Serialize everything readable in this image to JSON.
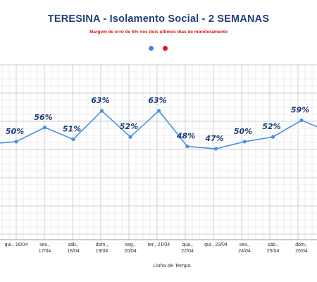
{
  "chart_data": {
    "type": "line",
    "title": "TERESINA - Isolamento Social - 2 SEMANAS",
    "subtitle": "Margem de erro de 5% nos dois últimos dias de monitoramento",
    "xlabel": "Linha de Tempo",
    "ylabel": "",
    "grid": true,
    "legend": {
      "position": "top-center",
      "colors": [
        "#4285f4",
        "#e8131c"
      ]
    },
    "line_color": "#4a8fe7",
    "label_color": "#1f3f7a",
    "ylim": [
      0,
      100
    ],
    "x_tick_labels": [
      [
        "qui., 16/04"
      ],
      [
        "sex.,",
        "17/04"
      ],
      [
        "sáb.,",
        "18/04"
      ],
      [
        "dom.,",
        "19/04"
      ],
      [
        "seg.,",
        "20/04"
      ],
      [
        "ter., 21/04"
      ],
      [
        "qua.,",
        "22/04"
      ],
      [
        "qui., 23/04"
      ],
      [
        "sex.,",
        "24/04"
      ],
      [
        "sáb.,",
        "25/04"
      ],
      [
        "dom.,",
        "26/04"
      ]
    ],
    "x_tick_index": [
      1,
      2,
      3,
      4,
      5,
      6,
      7,
      8,
      9,
      10,
      11
    ],
    "series": [
      {
        "x_index": [
          0,
          1,
          2,
          3,
          4,
          5,
          6,
          7,
          8,
          9,
          10,
          11,
          12
        ],
        "values": [
          49,
          50,
          56,
          51,
          63,
          52,
          63,
          48,
          47,
          50,
          52,
          59,
          54
        ],
        "labels": [
          "",
          "50%",
          "56%",
          "51%",
          "63%",
          "52%",
          "63%",
          "48%",
          "47%",
          "50%",
          "52%",
          "59%",
          ""
        ]
      }
    ]
  }
}
